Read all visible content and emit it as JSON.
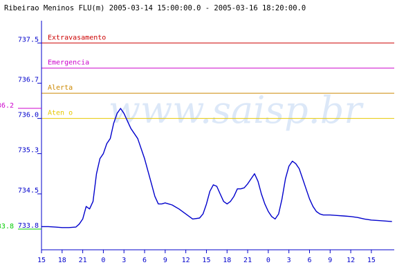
{
  "chart_data": {
    "type": "line",
    "title": "Ribeirao Meninos FLU(m) 2005-03-14 15:00:00.0 - 2005-03-16 18:20:00.0",
    "watermark": "www.saisp.br",
    "xlabel": "",
    "ylabel": "",
    "ylim": [
      733.8,
      737.6
    ],
    "xlim": [
      0,
      51.33
    ],
    "grid": false,
    "y_ticks": [
      {
        "value": 737.5,
        "label": "737.5"
      },
      {
        "value": 736.7,
        "label": "736.7"
      },
      {
        "value": 736.0,
        "label": "736.0"
      },
      {
        "value": 735.3,
        "label": "735.3"
      },
      {
        "value": 734.5,
        "label": "734.5"
      },
      {
        "value": 733.8,
        "label": "733.8"
      }
    ],
    "x_ticks": [
      {
        "hour": 0,
        "label": "15"
      },
      {
        "hour": 3,
        "label": "18"
      },
      {
        "hour": 6,
        "label": "21"
      },
      {
        "hour": 9,
        "label": "0"
      },
      {
        "hour": 12,
        "label": "3"
      },
      {
        "hour": 15,
        "label": "6"
      },
      {
        "hour": 18,
        "label": "9"
      },
      {
        "hour": 21,
        "label": "12"
      },
      {
        "hour": 24,
        "label": "15"
      },
      {
        "hour": 27,
        "label": "18"
      },
      {
        "hour": 30,
        "label": "21"
      },
      {
        "hour": 33,
        "label": "0"
      },
      {
        "hour": 36,
        "label": "3"
      },
      {
        "hour": 39,
        "label": "6"
      },
      {
        "hour": 42,
        "label": "9"
      },
      {
        "hour": 45,
        "label": "12"
      },
      {
        "hour": 48,
        "label": "15"
      }
    ],
    "thresholds": [
      {
        "name": "Extravasamento",
        "value": 737.5,
        "color": "#cc0000"
      },
      {
        "name": "Emergencia",
        "value": 737.0,
        "color": "#cc00cc"
      },
      {
        "name": "Alerta",
        "value": 736.5,
        "color": "#cc8800"
      },
      {
        "name": "Aten  o",
        "value": 736.0,
        "color": "#e6c800"
      }
    ],
    "markers": [
      {
        "label": "736.2",
        "value": 736.2,
        "color": "#cc00cc"
      },
      {
        "label": "733.8",
        "value": 733.8,
        "color": "#00cc00"
      }
    ],
    "series": [
      {
        "color": "#0000cc",
        "x": [
          0,
          1,
          2,
          3,
          4,
          5,
          5.5,
          6,
          6.5,
          7,
          7.5,
          8,
          8.5,
          9,
          9.5,
          10,
          10.5,
          11,
          11.5,
          12,
          12.5,
          13,
          14,
          15,
          16,
          16.5,
          17,
          17.5,
          18,
          18.5,
          19,
          20,
          21,
          22,
          23,
          23.5,
          24,
          24.5,
          25,
          25.5,
          26,
          26.5,
          27,
          27.5,
          28,
          28.5,
          29,
          29.5,
          30,
          30.5,
          31,
          31.5,
          32,
          32.5,
          33,
          33.5,
          34,
          34.5,
          35,
          35.5,
          36,
          36.5,
          37,
          37.5,
          38,
          38.5,
          39,
          39.5,
          40,
          40.5,
          41,
          41.5,
          42,
          43,
          44,
          45,
          46,
          47,
          48,
          49,
          50,
          51
        ],
        "y": [
          733.85,
          733.85,
          733.84,
          733.83,
          733.83,
          733.84,
          733.9,
          734.0,
          734.25,
          734.2,
          734.35,
          734.9,
          735.2,
          735.3,
          735.5,
          735.6,
          735.9,
          736.1,
          736.2,
          736.1,
          735.95,
          735.8,
          735.6,
          735.2,
          734.7,
          734.45,
          734.3,
          734.3,
          734.32,
          734.3,
          734.28,
          734.2,
          734.1,
          734.0,
          734.02,
          734.1,
          734.3,
          734.55,
          734.68,
          734.65,
          734.5,
          734.35,
          734.3,
          734.35,
          734.45,
          734.6,
          734.6,
          734.62,
          734.7,
          734.8,
          734.9,
          734.75,
          734.5,
          734.3,
          734.15,
          734.05,
          734.0,
          734.1,
          734.4,
          734.8,
          735.05,
          735.15,
          735.1,
          735.0,
          734.8,
          734.6,
          734.4,
          734.25,
          734.15,
          734.1,
          734.08,
          734.08,
          734.08,
          734.07,
          734.06,
          734.05,
          734.03,
          734.0,
          733.98,
          733.97,
          733.96,
          733.95
        ]
      }
    ]
  }
}
